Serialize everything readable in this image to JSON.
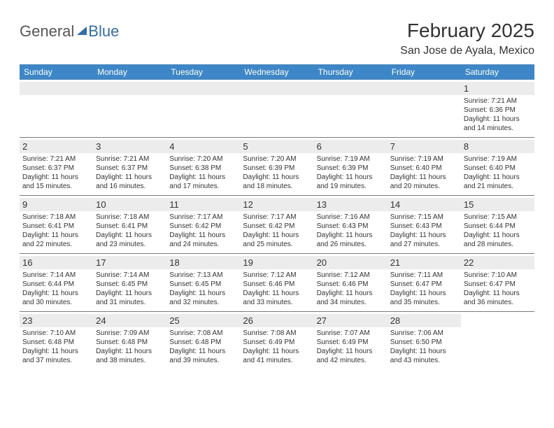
{
  "logo": {
    "text1": "General",
    "text2": "Blue"
  },
  "title": {
    "month": "February 2025",
    "location": "San Jose de Ayala, Mexico"
  },
  "header_bg": "#3d87c9",
  "header_fg": "#ffffff",
  "strip_bg": "#ececec",
  "divider": "#7a7a7a",
  "text_color": "#333333",
  "days": [
    "Sunday",
    "Monday",
    "Tuesday",
    "Wednesday",
    "Thursday",
    "Friday",
    "Saturday"
  ],
  "weeks": [
    [
      {
        "n": "",
        "lines": []
      },
      {
        "n": "",
        "lines": []
      },
      {
        "n": "",
        "lines": []
      },
      {
        "n": "",
        "lines": []
      },
      {
        "n": "",
        "lines": []
      },
      {
        "n": "",
        "lines": []
      },
      {
        "n": "1",
        "lines": [
          "Sunrise: 7:21 AM",
          "Sunset: 6:36 PM",
          "Daylight: 11 hours",
          "and 14 minutes."
        ]
      }
    ],
    [
      {
        "n": "2",
        "lines": [
          "Sunrise: 7:21 AM",
          "Sunset: 6:37 PM",
          "Daylight: 11 hours",
          "and 15 minutes."
        ]
      },
      {
        "n": "3",
        "lines": [
          "Sunrise: 7:21 AM",
          "Sunset: 6:37 PM",
          "Daylight: 11 hours",
          "and 16 minutes."
        ]
      },
      {
        "n": "4",
        "lines": [
          "Sunrise: 7:20 AM",
          "Sunset: 6:38 PM",
          "Daylight: 11 hours",
          "and 17 minutes."
        ]
      },
      {
        "n": "5",
        "lines": [
          "Sunrise: 7:20 AM",
          "Sunset: 6:39 PM",
          "Daylight: 11 hours",
          "and 18 minutes."
        ]
      },
      {
        "n": "6",
        "lines": [
          "Sunrise: 7:19 AM",
          "Sunset: 6:39 PM",
          "Daylight: 11 hours",
          "and 19 minutes."
        ]
      },
      {
        "n": "7",
        "lines": [
          "Sunrise: 7:19 AM",
          "Sunset: 6:40 PM",
          "Daylight: 11 hours",
          "and 20 minutes."
        ]
      },
      {
        "n": "8",
        "lines": [
          "Sunrise: 7:19 AM",
          "Sunset: 6:40 PM",
          "Daylight: 11 hours",
          "and 21 minutes."
        ]
      }
    ],
    [
      {
        "n": "9",
        "lines": [
          "Sunrise: 7:18 AM",
          "Sunset: 6:41 PM",
          "Daylight: 11 hours",
          "and 22 minutes."
        ]
      },
      {
        "n": "10",
        "lines": [
          "Sunrise: 7:18 AM",
          "Sunset: 6:41 PM",
          "Daylight: 11 hours",
          "and 23 minutes."
        ]
      },
      {
        "n": "11",
        "lines": [
          "Sunrise: 7:17 AM",
          "Sunset: 6:42 PM",
          "Daylight: 11 hours",
          "and 24 minutes."
        ]
      },
      {
        "n": "12",
        "lines": [
          "Sunrise: 7:17 AM",
          "Sunset: 6:42 PM",
          "Daylight: 11 hours",
          "and 25 minutes."
        ]
      },
      {
        "n": "13",
        "lines": [
          "Sunrise: 7:16 AM",
          "Sunset: 6:43 PM",
          "Daylight: 11 hours",
          "and 26 minutes."
        ]
      },
      {
        "n": "14",
        "lines": [
          "Sunrise: 7:15 AM",
          "Sunset: 6:43 PM",
          "Daylight: 11 hours",
          "and 27 minutes."
        ]
      },
      {
        "n": "15",
        "lines": [
          "Sunrise: 7:15 AM",
          "Sunset: 6:44 PM",
          "Daylight: 11 hours",
          "and 28 minutes."
        ]
      }
    ],
    [
      {
        "n": "16",
        "lines": [
          "Sunrise: 7:14 AM",
          "Sunset: 6:44 PM",
          "Daylight: 11 hours",
          "and 30 minutes."
        ]
      },
      {
        "n": "17",
        "lines": [
          "Sunrise: 7:14 AM",
          "Sunset: 6:45 PM",
          "Daylight: 11 hours",
          "and 31 minutes."
        ]
      },
      {
        "n": "18",
        "lines": [
          "Sunrise: 7:13 AM",
          "Sunset: 6:45 PM",
          "Daylight: 11 hours",
          "and 32 minutes."
        ]
      },
      {
        "n": "19",
        "lines": [
          "Sunrise: 7:12 AM",
          "Sunset: 6:46 PM",
          "Daylight: 11 hours",
          "and 33 minutes."
        ]
      },
      {
        "n": "20",
        "lines": [
          "Sunrise: 7:12 AM",
          "Sunset: 6:46 PM",
          "Daylight: 11 hours",
          "and 34 minutes."
        ]
      },
      {
        "n": "21",
        "lines": [
          "Sunrise: 7:11 AM",
          "Sunset: 6:47 PM",
          "Daylight: 11 hours",
          "and 35 minutes."
        ]
      },
      {
        "n": "22",
        "lines": [
          "Sunrise: 7:10 AM",
          "Sunset: 6:47 PM",
          "Daylight: 11 hours",
          "and 36 minutes."
        ]
      }
    ],
    [
      {
        "n": "23",
        "lines": [
          "Sunrise: 7:10 AM",
          "Sunset: 6:48 PM",
          "Daylight: 11 hours",
          "and 37 minutes."
        ]
      },
      {
        "n": "24",
        "lines": [
          "Sunrise: 7:09 AM",
          "Sunset: 6:48 PM",
          "Daylight: 11 hours",
          "and 38 minutes."
        ]
      },
      {
        "n": "25",
        "lines": [
          "Sunrise: 7:08 AM",
          "Sunset: 6:48 PM",
          "Daylight: 11 hours",
          "and 39 minutes."
        ]
      },
      {
        "n": "26",
        "lines": [
          "Sunrise: 7:08 AM",
          "Sunset: 6:49 PM",
          "Daylight: 11 hours",
          "and 41 minutes."
        ]
      },
      {
        "n": "27",
        "lines": [
          "Sunrise: 7:07 AM",
          "Sunset: 6:49 PM",
          "Daylight: 11 hours",
          "and 42 minutes."
        ]
      },
      {
        "n": "28",
        "lines": [
          "Sunrise: 7:06 AM",
          "Sunset: 6:50 PM",
          "Daylight: 11 hours",
          "and 43 minutes."
        ]
      },
      {
        "n": "",
        "lines": []
      }
    ]
  ]
}
